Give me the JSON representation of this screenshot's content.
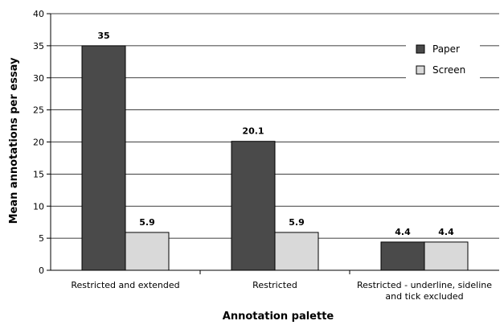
{
  "chart_data": {
    "type": "bar",
    "title": "",
    "xlabel": "Annotation palette",
    "ylabel": "Mean annotations per essay",
    "ylim": [
      0,
      40
    ],
    "yticks": [
      0,
      5,
      10,
      15,
      20,
      25,
      30,
      35,
      40
    ],
    "grid": true,
    "legend_position": "top-right",
    "categories": [
      [
        "Restricted and extended"
      ],
      [
        "Restricted"
      ],
      [
        "Restricted - underline, sideline",
        "and tick excluded"
      ]
    ],
    "series": [
      {
        "name": "Paper",
        "color": "#4a4a4a",
        "values": [
          35,
          20.1,
          4.4
        ],
        "labels": [
          "35",
          "20.1",
          "4.4"
        ]
      },
      {
        "name": "Screen",
        "color": "#d9d9d9",
        "values": [
          5.9,
          5.9,
          4.4
        ],
        "labels": [
          "5.9",
          "5.9",
          "4.4"
        ]
      }
    ]
  }
}
